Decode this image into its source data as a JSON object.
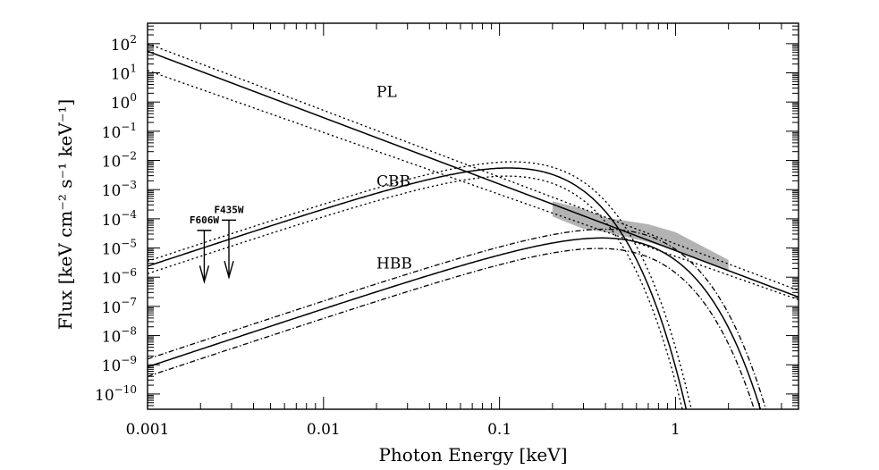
{
  "chart_data": {
    "type": "line",
    "xlabel": "Photon Energy [keV]",
    "ylabel": "Flux [keV cm⁻² s⁻¹ keV⁻¹]",
    "xscale": "log",
    "yscale": "log",
    "xlim": [
      0.001,
      5
    ],
    "ylim": [
      3e-11,
      500
    ],
    "x_tick_labels": [
      {
        "value": 0.001,
        "label": "0.001"
      },
      {
        "value": 0.01,
        "label": "0.01"
      },
      {
        "value": 0.1,
        "label": "0.1"
      },
      {
        "value": 1,
        "label": "1"
      }
    ],
    "y_tick_labels": [
      {
        "exp": 2,
        "base": "10",
        "sup": "2"
      },
      {
        "exp": 1,
        "base": "10",
        "sup": "1"
      },
      {
        "exp": 0,
        "base": "10",
        "sup": "0"
      },
      {
        "exp": -1,
        "base": "10",
        "sup": "−1"
      },
      {
        "exp": -2,
        "base": "10",
        "sup": "−2"
      },
      {
        "exp": -3,
        "base": "10",
        "sup": "−3"
      },
      {
        "exp": -4,
        "base": "10",
        "sup": "−4"
      },
      {
        "exp": -5,
        "base": "10",
        "sup": "−5"
      },
      {
        "exp": -6,
        "base": "10",
        "sup": "−6"
      },
      {
        "exp": -7,
        "base": "10",
        "sup": "−7"
      },
      {
        "exp": -8,
        "base": "10",
        "sup": "−8"
      },
      {
        "exp": -9,
        "base": "10",
        "sup": "−9"
      },
      {
        "exp": -10,
        "base": "10",
        "sup": "−10"
      }
    ],
    "series": [
      {
        "component": "PL",
        "kind": "power-law",
        "style": "solid",
        "x": [
          0.001,
          5
        ],
        "y": [
          55,
          2.1e-07
        ]
      },
      {
        "component": "PL",
        "kind": "power-law",
        "style": "dotted",
        "x": [
          0.001,
          5
        ],
        "y": [
          100,
          3.5e-07
        ]
      },
      {
        "component": "PL",
        "kind": "power-law",
        "style": "dotted",
        "x": [
          0.001,
          5
        ],
        "y": [
          12,
          1.7e-07
        ]
      },
      {
        "component": "CBB",
        "kind": "blackbody",
        "style": "solid",
        "kT_keV": 0.04,
        "peak_flux": 0.004
      },
      {
        "component": "CBB",
        "kind": "blackbody",
        "style": "dotted",
        "kT_keV": 0.042,
        "peak_flux": 0.0065
      },
      {
        "component": "CBB",
        "kind": "blackbody",
        "style": "dotted",
        "kT_keV": 0.039,
        "peak_flux": 0.0021
      },
      {
        "component": "HBB",
        "kind": "blackbody",
        "style": "solid",
        "kT_keV": 0.135,
        "peak_flux": 1.6e-05
      },
      {
        "component": "HBB",
        "kind": "blackbody",
        "style": "dot-dash",
        "kT_keV": 0.14,
        "peak_flux": 3.2e-05
      },
      {
        "component": "HBB",
        "kind": "blackbody",
        "style": "dot-dash",
        "kT_keV": 0.13,
        "peak_flux": 7e-06
      }
    ],
    "shaded_band": {
      "x": [
        0.2,
        0.3,
        0.4,
        0.7,
        1.0,
        2.0
      ],
      "upper": [
        0.0004,
        0.00022,
        0.00011,
        6.5e-05,
        3.5e-05,
        3.9e-06
      ],
      "lower": [
        0.00012,
        4.5e-05,
        3.5e-05,
        1.6e-05,
        8.5e-06,
        1.6e-06
      ]
    },
    "upper_limits": [
      {
        "label": "F606W",
        "x": 0.0021,
        "y": 4e-05,
        "arrow_to": 7e-07
      },
      {
        "label": "F435W",
        "x": 0.0029,
        "y": 9e-05,
        "arrow_to": 1e-06
      }
    ],
    "annotations": [
      {
        "text": "PL",
        "x": 0.02,
        "y": 1.5
      },
      {
        "text": "CBB",
        "x": 0.02,
        "y": 0.0013
      },
      {
        "text": "HBB",
        "x": 0.02,
        "y": 2e-06
      }
    ]
  }
}
